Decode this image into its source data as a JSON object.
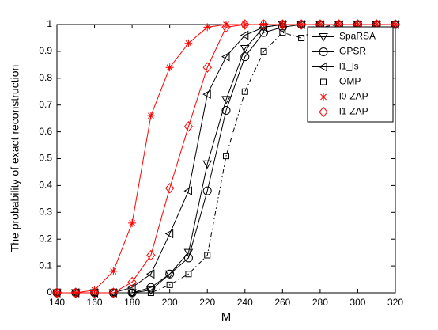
{
  "chart_data": {
    "type": "line",
    "xlabel": "M",
    "ylabel": "The probability of exact reconstruction",
    "x": [
      140,
      150,
      160,
      170,
      180,
      190,
      200,
      210,
      220,
      230,
      240,
      250,
      260,
      270,
      280,
      290,
      300,
      310,
      320
    ],
    "series": [
      {
        "name": "SpaRSA",
        "color": "#000000",
        "marker": "v",
        "dash": "solid",
        "values": [
          0,
          0,
          0,
          0,
          0,
          0.01,
          0.07,
          0.15,
          0.48,
          0.72,
          0.91,
          0.99,
          1,
          1,
          1,
          1,
          1,
          1,
          1
        ]
      },
      {
        "name": "GPSR",
        "color": "#000000",
        "marker": "o",
        "dash": "solid",
        "values": [
          0,
          0,
          0,
          0,
          0,
          0.02,
          0.07,
          0.13,
          0.38,
          0.68,
          0.88,
          0.97,
          0.99,
          1,
          1,
          1,
          1,
          1,
          1
        ]
      },
      {
        "name": "l1_ls",
        "color": "#000000",
        "marker": "<",
        "dash": "solid",
        "values": [
          0,
          0,
          0,
          0,
          0.02,
          0.07,
          0.22,
          0.38,
          0.74,
          0.88,
          0.96,
          0.99,
          1,
          1,
          1,
          1,
          1,
          1,
          1
        ]
      },
      {
        "name": "OMP",
        "color": "#000000",
        "marker": "s",
        "dash": "dashdot",
        "values": [
          0,
          0,
          0,
          0,
          0,
          0,
          0.03,
          0.07,
          0.14,
          0.51,
          0.75,
          0.9,
          0.97,
          0.95,
          0.99,
          1,
          1,
          1,
          1
        ]
      },
      {
        "name": "l0-ZAP",
        "color": "#ff0000",
        "marker": "*",
        "dash": "solid",
        "values": [
          0,
          0,
          0.01,
          0.08,
          0.26,
          0.66,
          0.84,
          0.93,
          0.99,
          1,
          1,
          1,
          1,
          1,
          1,
          1,
          1,
          1,
          1
        ]
      },
      {
        "name": "l1-ZAP",
        "color": "#ff0000",
        "marker": "d",
        "dash": "solid",
        "values": [
          0,
          0,
          0,
          0,
          0.04,
          0.14,
          0.39,
          0.62,
          0.84,
          0.99,
          1,
          1,
          1,
          1,
          1,
          1,
          1,
          1,
          1
        ]
      }
    ],
    "xlim": [
      140,
      320
    ],
    "xticks": [
      140,
      160,
      180,
      200,
      220,
      240,
      260,
      280,
      300,
      320
    ],
    "ylim": [
      0,
      1
    ],
    "yticks": [
      0,
      0.1,
      0.2,
      0.3,
      0.4,
      0.5,
      0.6,
      0.7,
      0.8,
      0.9,
      1
    ],
    "grid": false,
    "legend": "top-right"
  }
}
